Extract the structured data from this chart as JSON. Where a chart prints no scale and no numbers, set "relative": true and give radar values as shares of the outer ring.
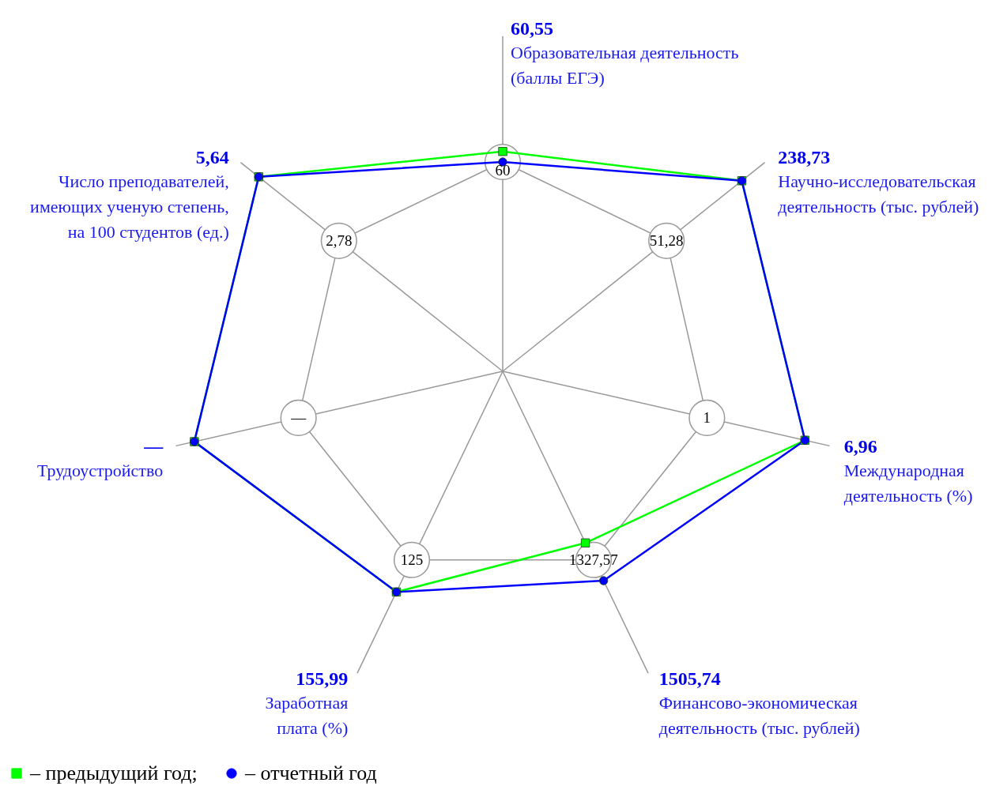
{
  "chart_data": {
    "type": "radar",
    "relative": true,
    "categories": [
      "Образовательная деятельность\n(баллы ЕГЭ)",
      "Научно-исследовательская\nдеятельность (тыс. рублей)",
      "Международная\nдеятельность (%)",
      "Финансово-экономическая\nдеятельность (тыс. рублей)",
      "Заработная\nплата (%)",
      "Трудоустройство",
      "Число преподавателей,\nимеющих ученую степень,\nна 100 студентов (ед.)"
    ],
    "series": [
      {
        "name": "– предыдущий год;",
        "color": "#00ff00",
        "marker": "square",
        "values": [
          1.05,
          1.46,
          1.48,
          0.91,
          1.17,
          1.51,
          1.49
        ]
      },
      {
        "name": "– отчетный год",
        "color": "#0000ff",
        "marker": "circle",
        "values": [
          1.0,
          1.46,
          1.48,
          1.11,
          1.17,
          1.51,
          1.49
        ]
      }
    ],
    "annotations": [
      {
        "text": "60,55",
        "x": "Образовательная деятельность\n(баллы ЕГЭ)"
      },
      {
        "text": "238,73",
        "x": "Научно-исследовательская\nдеятельность (тыс. рублей)"
      },
      {
        "text": "6,96",
        "x": "Международная\nдеятельность (%)"
      },
      {
        "text": "1505,74",
        "x": "Финансово-экономическая\nдеятельность (тыс. рублей)"
      },
      {
        "text": "155,99",
        "x": "Заработная\nплата (%)"
      },
      {
        "text": "—",
        "x": "Трудоустройство"
      },
      {
        "text": "5,64",
        "x": "Число преподавателей,\nимеющих ученую степень,\nна 100 студентов (ед.)"
      },
      {
        "text": "60",
        "x": "Образовательная деятельность\n(баллы ЕГЭ)"
      },
      {
        "text": "51,28",
        "x": "Научно-исследовательская\nдеятельность (тыс. рублей)"
      },
      {
        "text": "1",
        "x": "Международная\nдеятельность (%)"
      },
      {
        "text": "1327,57",
        "x": "Финансово-экономическая\nдеятельность (тыс. рублей)"
      },
      {
        "text": "125",
        "x": "Заработная\nплата (%)"
      },
      {
        "text": "—",
        "x": "Трудоустройство"
      },
      {
        "text": "2,78",
        "x": "Число преподавателей,\nимеющих ученую степень,\nна 100 студентов (ед.)"
      }
    ],
    "legend": "bottom"
  }
}
